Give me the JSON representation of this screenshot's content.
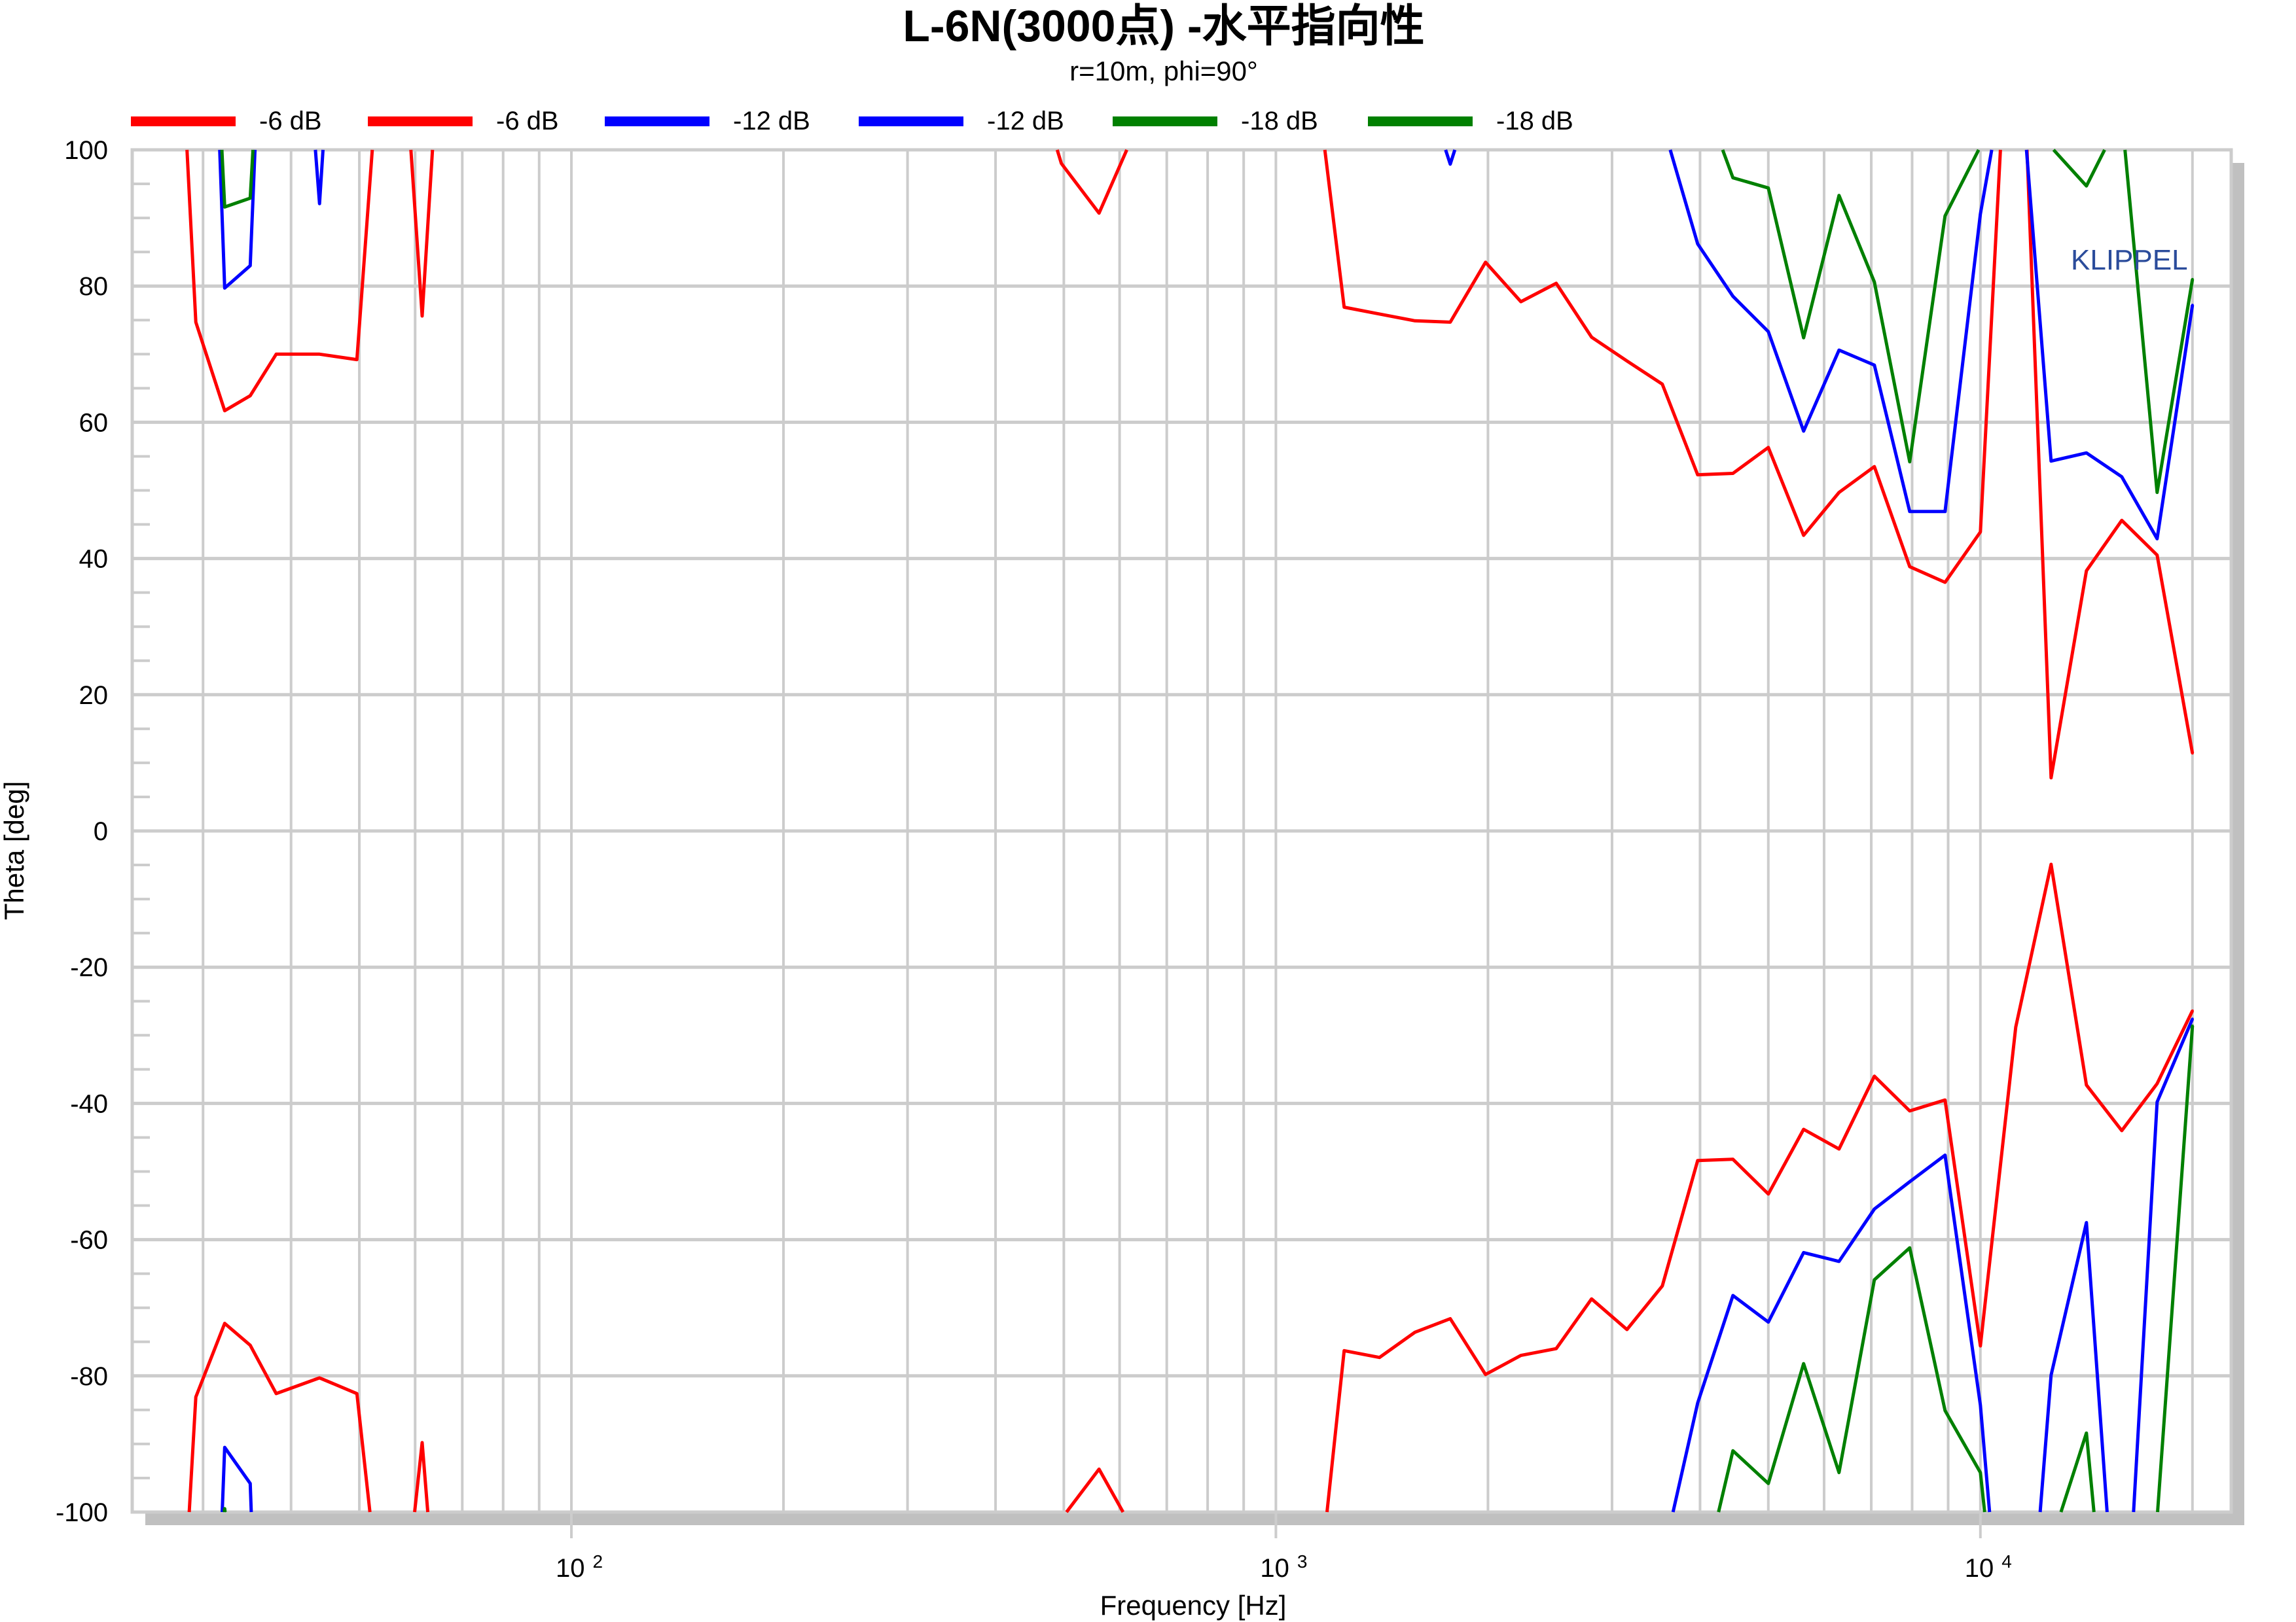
{
  "chart_data": {
    "type": "line",
    "title": "L-6N(3000点) -水平指向性",
    "subtitle": "r=10m, phi=90°",
    "xlabel": "Frequency [Hz]",
    "ylabel": "Theta [deg]",
    "x_scale": "log",
    "xlim": [
      23.8,
      22700
    ],
    "ylim": [
      -100,
      100
    ],
    "yticks": [
      -100,
      -80,
      -60,
      -40,
      -20,
      0,
      20,
      40,
      60,
      80,
      100
    ],
    "xticks": [
      {
        "value": 100,
        "base": "10",
        "exp": "2"
      },
      {
        "value": 1000,
        "base": "10",
        "exp": "3"
      },
      {
        "value": 10000,
        "base": "10",
        "exp": "4"
      }
    ],
    "grid": true,
    "legend_position": "top",
    "watermark": "KLIPPEL",
    "series": [
      {
        "name": "-6 dB",
        "color": "#ff0000",
        "points": [
          [
            27.6,
            127
          ],
          [
            29.3,
            74.7
          ],
          [
            32.2,
            61.7
          ],
          [
            35,
            63.9
          ],
          [
            38.1,
            70
          ],
          [
            43.9,
            70
          ],
          [
            49.6,
            69.2
          ],
          [
            55.7,
            140
          ],
          [
            61.4,
            75.6
          ],
          [
            66,
            128
          ],
          null,
          [
            442,
            115
          ],
          [
            496,
            98
          ],
          [
            561,
            90.7
          ],
          [
            630,
            102.6
          ],
          null,
          [
            1114,
            119
          ],
          [
            1250,
            76.9
          ],
          [
            1403,
            75.9
          ],
          [
            1575,
            74.9
          ],
          [
            1768,
            74.7
          ],
          [
            1984,
            83.5
          ],
          [
            2227,
            77.7
          ],
          [
            2500,
            80.4
          ],
          [
            2806,
            72.5
          ],
          [
            3150,
            69.0
          ],
          [
            3536,
            65.6
          ],
          [
            3969,
            52.3
          ],
          [
            4454,
            52.5
          ],
          [
            5000,
            56.3
          ],
          [
            5612,
            43.4
          ],
          [
            6300,
            49.7
          ],
          [
            7071,
            53.5
          ],
          [
            7937,
            38.8
          ],
          [
            8909,
            36.5
          ],
          [
            10000,
            43.9
          ],
          [
            11225,
            143
          ],
          [
            12599,
            7.8
          ],
          [
            14142,
            38.2
          ],
          [
            15874,
            45.6
          ],
          [
            17818,
            40.5
          ],
          [
            20000,
            11.4
          ]
        ]
      },
      {
        "name": "-6 dB",
        "color": "#ff0000",
        "points": [
          [
            27.6,
            -130
          ],
          [
            29.3,
            -83.1
          ],
          [
            32.2,
            -72.3
          ],
          [
            35,
            -75.5
          ],
          [
            38.1,
            -82.6
          ],
          [
            43.9,
            -80.3
          ],
          [
            49.6,
            -82.6
          ],
          [
            55.7,
            -130
          ],
          [
            61.4,
            -89.8
          ],
          [
            66,
            -130
          ],
          null,
          [
            442,
            -115
          ],
          [
            496,
            -101
          ],
          [
            561,
            -93.7
          ],
          [
            630,
            -103
          ],
          null,
          [
            1114,
            -125
          ],
          [
            1250,
            -76.3
          ],
          [
            1403,
            -77.3
          ],
          [
            1575,
            -73.6
          ],
          [
            1768,
            -71.6
          ],
          [
            1984,
            -79.8
          ],
          [
            2227,
            -77
          ],
          [
            2500,
            -76
          ],
          [
            2806,
            -68.7
          ],
          [
            3150,
            -73.2
          ],
          [
            3536,
            -66.8
          ],
          [
            3969,
            -48.4
          ],
          [
            4454,
            -48.2
          ],
          [
            5000,
            -53.3
          ],
          [
            5612,
            -43.8
          ],
          [
            6300,
            -46.7
          ],
          [
            7071,
            -36
          ],
          [
            7937,
            -41.1
          ],
          [
            8909,
            -39.5
          ],
          [
            10000,
            -75.6
          ],
          [
            11225,
            -28.8
          ],
          [
            12599,
            -4.9
          ],
          [
            14142,
            -37.3
          ],
          [
            15874,
            -44
          ],
          [
            17818,
            -37.1
          ],
          [
            20000,
            -26.4
          ]
        ]
      },
      {
        "name": "-12 dB",
        "color": "#0000ff",
        "points": [
          [
            29.3,
            197
          ],
          [
            32.2,
            79.7
          ],
          [
            35,
            83
          ],
          [
            38.1,
            175
          ],
          [
            43.9,
            92.1
          ],
          [
            49.6,
            177
          ],
          null,
          [
            1575,
            114
          ],
          [
            1768,
            97.9
          ],
          [
            1984,
            114
          ],
          null,
          [
            3536,
            104
          ],
          [
            3969,
            86.2
          ],
          [
            4454,
            78.5
          ],
          [
            5000,
            73.3
          ],
          [
            5612,
            58.7
          ],
          [
            6300,
            70.6
          ],
          [
            7071,
            68.4
          ],
          [
            7937,
            46.9
          ],
          [
            8909,
            46.9
          ],
          [
            10000,
            90.6
          ],
          [
            11225,
            120
          ],
          [
            12599,
            54.3
          ],
          [
            14142,
            55.5
          ],
          [
            15874,
            52
          ],
          [
            17818,
            42.9
          ],
          [
            20000,
            77.2
          ]
        ]
      },
      {
        "name": "-12 dB",
        "color": "#0000ff",
        "points": [
          [
            29.3,
            -200
          ],
          [
            32.2,
            -90.5
          ],
          [
            35,
            -95.8
          ],
          [
            38.1,
            -200
          ],
          null,
          [
            3536,
            -107
          ],
          [
            3969,
            -84
          ],
          [
            4454,
            -68.2
          ],
          [
            5000,
            -72.1
          ],
          [
            5612,
            -61.9
          ],
          [
            6300,
            -63.2
          ],
          [
            7071,
            -55.5
          ],
          [
            7937,
            -51.5
          ],
          [
            8909,
            -47.6
          ],
          [
            10000,
            -84.3
          ],
          [
            11225,
            -145
          ],
          [
            12599,
            -79.9
          ],
          [
            14142,
            -57.5
          ],
          [
            15874,
            -130
          ],
          [
            17818,
            -39.8
          ],
          [
            20000,
            -27.6
          ]
        ]
      },
      {
        "name": "-18 dB",
        "color": "#008000",
        "points": [
          [
            29.3,
            177
          ],
          [
            32.2,
            91.6
          ],
          [
            35,
            92.9
          ],
          [
            38.1,
            160
          ],
          null,
          [
            3969,
            110
          ],
          [
            4454,
            95.9
          ],
          [
            5000,
            94.4
          ],
          [
            5612,
            72.4
          ],
          [
            6300,
            93.3
          ],
          [
            7071,
            80.6
          ],
          [
            7937,
            54.2
          ],
          [
            8909,
            90.3
          ],
          [
            10000,
            100.5
          ],
          [
            11225,
            115
          ],
          [
            12599,
            100.4
          ],
          [
            14142,
            94.7
          ],
          [
            15874,
            105
          ],
          [
            17818,
            49.7
          ],
          [
            20000,
            81
          ]
        ]
      },
      {
        "name": "-18 dB",
        "color": "#008000",
        "points": [
          [
            29.3,
            -130
          ],
          [
            32.2,
            -99.5
          ],
          [
            35,
            -130
          ],
          null,
          [
            3969,
            -113
          ],
          [
            4454,
            -91
          ],
          [
            5000,
            -95.8
          ],
          [
            5612,
            -78.2
          ],
          [
            6300,
            -94.2
          ],
          [
            7071,
            -65.9
          ],
          [
            7937,
            -61.2
          ],
          [
            8909,
            -85.1
          ],
          [
            10000,
            -94.2
          ],
          [
            11225,
            -142
          ],
          [
            12599,
            -104.5
          ],
          [
            14142,
            -88.4
          ],
          [
            15874,
            -143
          ],
          [
            17818,
            -101
          ],
          [
            20000,
            -28.6
          ]
        ]
      }
    ]
  }
}
